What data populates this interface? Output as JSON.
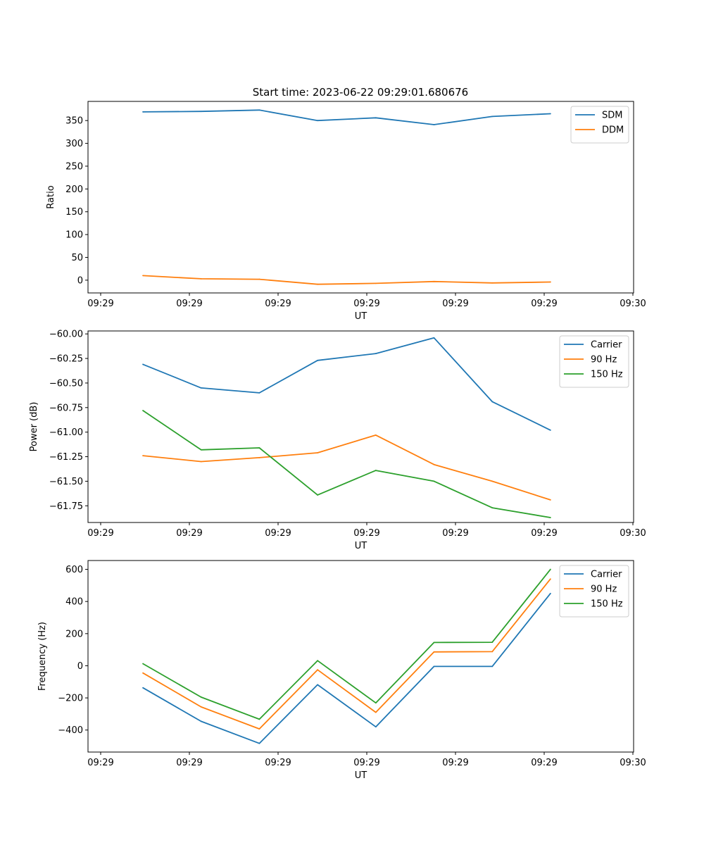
{
  "figure": {
    "title": "Start time: 2023-06-22 09:29:01.680676"
  },
  "chart_data": [
    {
      "type": "line",
      "title": "Start time: 2023-06-22 09:29:01.680676",
      "xlabel": "UT",
      "ylabel": "Ratio",
      "xtick_labels": [
        "09:29",
        "09:29",
        "09:29",
        "09:29",
        "09:29",
        "09:29",
        "09:30"
      ],
      "ylim": [
        -28,
        392
      ],
      "yticks": [
        0,
        50,
        100,
        150,
        200,
        250,
        300,
        350
      ],
      "ytick_labels": [
        "0",
        "50",
        "100",
        "150",
        "200",
        "250",
        "300",
        "350"
      ],
      "legend_position": "upper-right",
      "grid": false,
      "series": [
        {
          "name": "SDM",
          "color": "#1f77b4",
          "values": [
            369,
            370,
            373,
            350,
            356,
            341,
            359,
            365
          ]
        },
        {
          "name": "DDM",
          "color": "#ff7f0e",
          "values": [
            10,
            3,
            2,
            -9,
            -7,
            -3,
            -6,
            -4
          ]
        }
      ]
    },
    {
      "type": "line",
      "title": "",
      "xlabel": "UT",
      "ylabel": "Power (dB)",
      "xtick_labels": [
        "09:29",
        "09:29",
        "09:29",
        "09:29",
        "09:29",
        "09:29",
        "09:30"
      ],
      "ylim": [
        -61.92,
        -59.97
      ],
      "yticks": [
        -61.75,
        -61.5,
        -61.25,
        -61.0,
        -60.75,
        -60.5,
        -60.25,
        -60.0
      ],
      "ytick_labels": [
        "−61.75",
        "−61.50",
        "−61.25",
        "−61.00",
        "−60.75",
        "−60.50",
        "−60.25",
        "−60.00"
      ],
      "legend_position": "upper-right",
      "grid": false,
      "series": [
        {
          "name": "Carrier",
          "color": "#1f77b4",
          "values": [
            -60.31,
            -60.55,
            -60.6,
            -60.27,
            -60.2,
            -60.04,
            -60.69,
            -60.98
          ]
        },
        {
          "name": "90 Hz",
          "color": "#ff7f0e",
          "values": [
            -61.24,
            -61.3,
            -61.26,
            -61.21,
            -61.03,
            -61.33,
            -61.5,
            -61.69
          ]
        },
        {
          "name": "150 Hz",
          "color": "#2ca02c",
          "values": [
            -60.78,
            -61.18,
            -61.16,
            -61.64,
            -61.39,
            -61.5,
            -61.77,
            -61.87
          ]
        }
      ]
    },
    {
      "type": "line",
      "title": "",
      "xlabel": "UT",
      "ylabel": "Frequency (Hz)",
      "xtick_labels": [
        "09:29",
        "09:29",
        "09:29",
        "09:29",
        "09:29",
        "09:29",
        "09:30"
      ],
      "ylim": [
        -537,
        655
      ],
      "yticks": [
        -400,
        -200,
        0,
        200,
        400,
        600
      ],
      "ytick_labels": [
        "−400",
        "−200",
        "0",
        "200",
        "400",
        "600"
      ],
      "legend_position": "upper-right",
      "grid": false,
      "series": [
        {
          "name": "Carrier",
          "color": "#1f77b4",
          "values": [
            -137,
            -346,
            -483,
            -118,
            -380,
            -4,
            -4,
            450
          ]
        },
        {
          "name": "90 Hz",
          "color": "#ff7f0e",
          "values": [
            -45,
            -256,
            -393,
            -25,
            -290,
            86,
            88,
            540
          ]
        },
        {
          "name": "150 Hz",
          "color": "#2ca02c",
          "values": [
            13,
            -195,
            -333,
            32,
            -231,
            145,
            146,
            600
          ]
        }
      ]
    }
  ]
}
